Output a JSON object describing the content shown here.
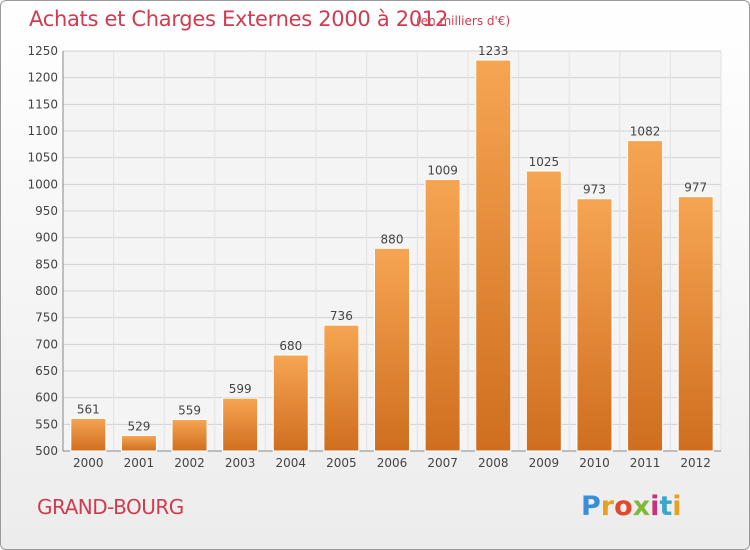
{
  "header": {
    "title": "Achats et Charges Externes 2000 à 2012",
    "subtitle": "(en milliers d'€)"
  },
  "footer": {
    "place": "GRAND-BOURG",
    "logo_letters": [
      "P",
      "r",
      "o",
      "x",
      "i",
      "t",
      "i"
    ]
  },
  "colors": {
    "title": "#d03c4f",
    "bar_top": "#f6a552",
    "bar_bottom": "#cf6e1f",
    "grid": "#d2d2d2"
  },
  "chart_data": {
    "type": "bar",
    "title": "Achats et Charges Externes 2000 à 2012",
    "subtitle": "(en milliers d'€)",
    "categories": [
      "2000",
      "2001",
      "2002",
      "2003",
      "2004",
      "2005",
      "2006",
      "2007",
      "2008",
      "2009",
      "2010",
      "2011",
      "2012"
    ],
    "values": [
      561,
      529,
      559,
      599,
      680,
      736,
      880,
      1009,
      1233,
      1025,
      973,
      1082,
      977
    ],
    "ylim": [
      500,
      1250
    ],
    "yticks": [
      500,
      550,
      600,
      650,
      700,
      750,
      800,
      850,
      900,
      950,
      1000,
      1050,
      1100,
      1150,
      1200,
      1250
    ],
    "grid": true,
    "data_labels": true
  }
}
